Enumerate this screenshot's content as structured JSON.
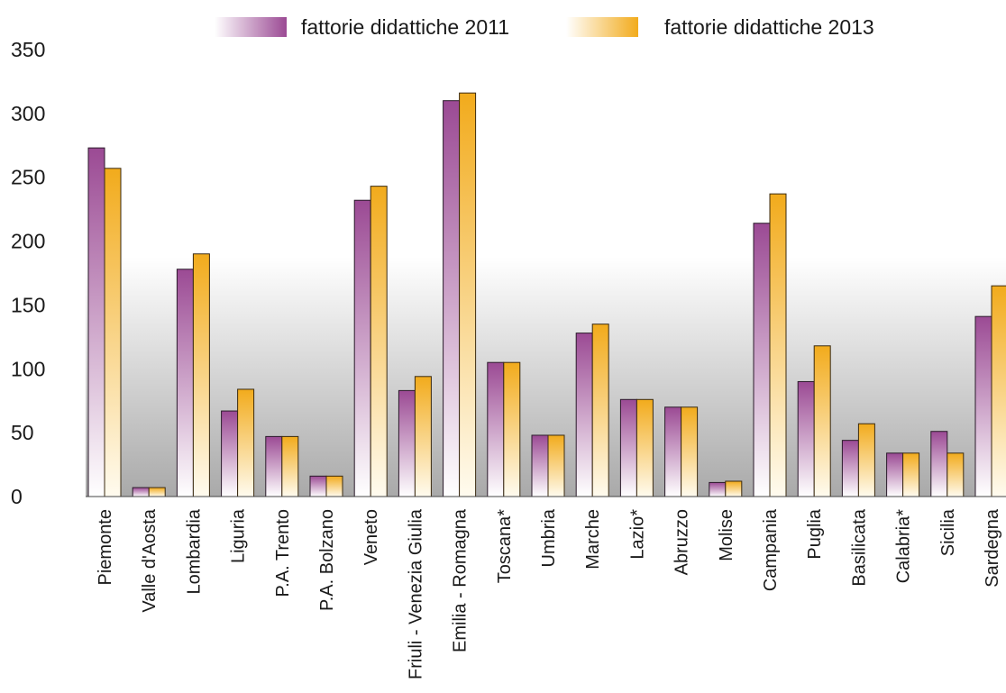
{
  "colors": {
    "series_2011": "#9b4a94",
    "series_2013": "#f2ab1c",
    "band": "#a9a9a9"
  },
  "chart_data": {
    "type": "bar",
    "title": "",
    "xlabel": "",
    "ylabel": "",
    "ylim": [
      0,
      350
    ],
    "yticks": [
      0,
      50,
      100,
      150,
      200,
      250,
      300,
      350
    ],
    "legend_position": "top",
    "grid": false,
    "categories": [
      "Piemonte",
      "Valle d'Aosta",
      "Lombardia",
      "Liguria",
      "P.A. Trento",
      "P.A. Bolzano",
      "Veneto",
      "Friuli - Venezia Giulia",
      "Emilia - Romagna",
      "Toscana*",
      "Umbria",
      "Marche",
      "Lazio*",
      "Abruzzo",
      "Molise",
      "Campania",
      "Puglia",
      "Basilicata",
      "Calabria*",
      "Sicilia",
      "Sardegna"
    ],
    "series": [
      {
        "name": "fattorie didattiche 2011",
        "values": [
          273,
          7,
          178,
          67,
          47,
          16,
          232,
          83,
          310,
          105,
          48,
          128,
          76,
          70,
          11,
          214,
          90,
          44,
          34,
          51,
          141
        ]
      },
      {
        "name": "fattorie didattiche 2013",
        "values": [
          257,
          7,
          190,
          84,
          47,
          16,
          243,
          94,
          316,
          105,
          48,
          135,
          76,
          70,
          12,
          237,
          118,
          57,
          34,
          34,
          165
        ]
      }
    ]
  }
}
